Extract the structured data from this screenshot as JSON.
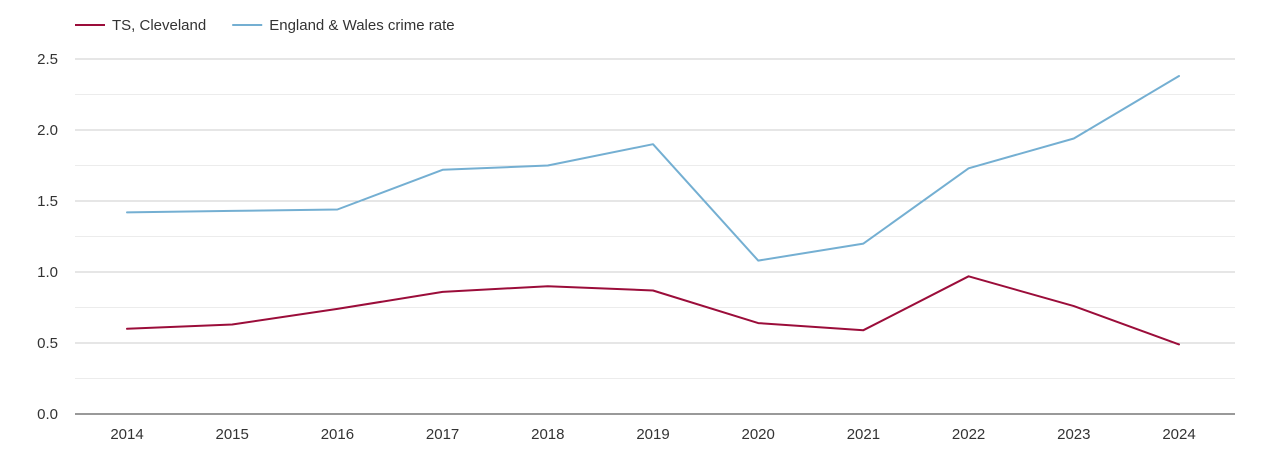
{
  "chart_data": {
    "type": "line",
    "title": "",
    "xlabel": "",
    "ylabel": "",
    "categories": [
      "2014",
      "2015",
      "2016",
      "2017",
      "2018",
      "2019",
      "2020",
      "2021",
      "2022",
      "2023",
      "2024"
    ],
    "series": [
      {
        "name": "TS, Cleveland",
        "color": "#9b0d3a",
        "values": [
          0.6,
          0.63,
          0.74,
          0.86,
          0.9,
          0.87,
          0.64,
          0.59,
          0.97,
          0.76,
          0.49
        ]
      },
      {
        "name": "England & Wales crime rate",
        "color": "#74afd2",
        "values": [
          1.42,
          1.43,
          1.44,
          1.72,
          1.75,
          1.9,
          1.08,
          1.2,
          1.73,
          1.94,
          2.38
        ]
      }
    ],
    "ylim": [
      0,
      2.5
    ],
    "y_ticks": [
      "0.0",
      "0.5",
      "1.0",
      "1.5",
      "2.0",
      "2.5"
    ],
    "grid": true,
    "legend_position": "top-left"
  }
}
